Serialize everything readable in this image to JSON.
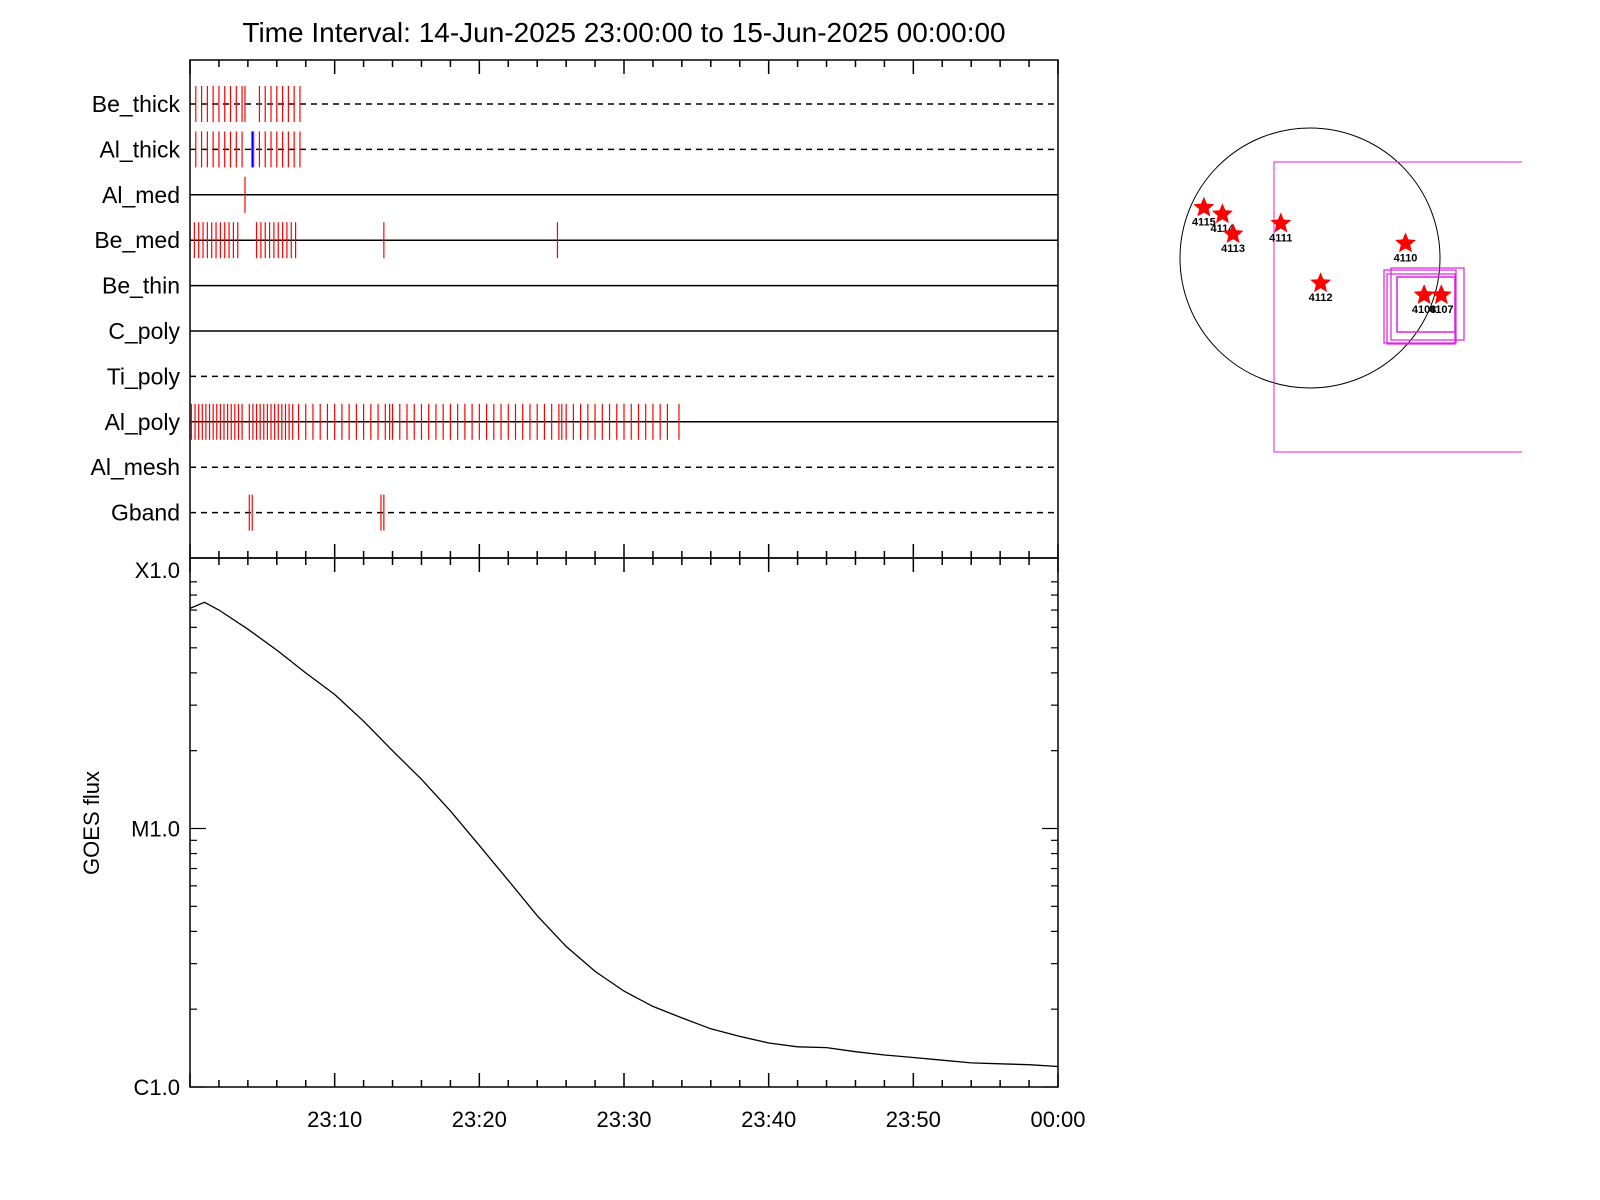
{
  "title": "Time Interval: 14-Jun-2025 23:00:00 to 15-Jun-2025 00:00:00",
  "colors": {
    "axis": "#000000",
    "event_red": "#ff0000",
    "event_blue": "#0000ff",
    "fov_magenta": "#e020e0",
    "star_red": "#ff0000"
  },
  "chart_data": [
    {
      "type": "event-raster",
      "x_unit": "minutes after 23:00",
      "xlim": [
        0,
        60
      ],
      "channels": [
        {
          "name": "Be_thick",
          "baseline": "dashed",
          "red": [
            0.4,
            0.8,
            1.2,
            1.6,
            2.0,
            2.4,
            2.8,
            3.2,
            3.6,
            3.8,
            4.8,
            5.2,
            5.6,
            6.0,
            6.4,
            6.8,
            7.2,
            7.6
          ],
          "blue": []
        },
        {
          "name": "Al_thick",
          "baseline": "dashed",
          "red": [
            0.4,
            0.8,
            1.2,
            1.6,
            2.0,
            2.4,
            2.8,
            3.2,
            3.6,
            4.4,
            4.8,
            5.2,
            5.6,
            6.0,
            6.4,
            6.8,
            7.2,
            7.6
          ],
          "blue": [
            4.3
          ]
        },
        {
          "name": "Al_med",
          "baseline": "solid",
          "red": [
            3.8
          ],
          "blue": []
        },
        {
          "name": "Be_med",
          "baseline": "solid",
          "red": [
            0.3,
            0.6,
            0.9,
            1.2,
            1.5,
            1.8,
            2.1,
            2.4,
            2.7,
            3.0,
            3.3,
            4.6,
            4.9,
            5.2,
            5.5,
            5.8,
            6.1,
            6.4,
            6.7,
            7.0,
            7.3,
            13.4,
            25.4
          ],
          "blue": []
        },
        {
          "name": "Be_thin",
          "baseline": "solid",
          "red": [],
          "blue": []
        },
        {
          "name": "C_poly",
          "baseline": "solid",
          "red": [],
          "blue": []
        },
        {
          "name": "Ti_poly",
          "baseline": "dashed",
          "red": [],
          "blue": []
        },
        {
          "name": "Al_poly",
          "baseline": "solid",
          "red": [
            0.1,
            0.35,
            0.6,
            0.85,
            1.1,
            1.35,
            1.6,
            1.85,
            2.1,
            2.35,
            2.6,
            2.85,
            3.1,
            3.35,
            3.6,
            4.1,
            4.35,
            4.6,
            4.85,
            5.1,
            5.35,
            5.6,
            5.85,
            6.1,
            6.35,
            6.6,
            6.85,
            7.1,
            7.5,
            8.0,
            8.5,
            9.0,
            9.5,
            10.0,
            10.5,
            11.0,
            11.5,
            12.0,
            12.5,
            13.0,
            13.5,
            13.8,
            14.0,
            14.5,
            15.0,
            15.5,
            16.0,
            16.5,
            17.0,
            17.5,
            18.0,
            18.5,
            19.0,
            19.5,
            20.0,
            20.5,
            21.0,
            21.5,
            22.0,
            22.5,
            23.0,
            23.5,
            24.0,
            24.5,
            25.0,
            25.5,
            25.7,
            26.0,
            26.5,
            27.0,
            27.5,
            28.0,
            28.5,
            29.0,
            29.5,
            30.0,
            30.5,
            31.0,
            31.5,
            32.0,
            32.5,
            33.0,
            33.8
          ],
          "blue": []
        },
        {
          "name": "Al_mesh",
          "baseline": "dashed",
          "red": [],
          "blue": []
        },
        {
          "name": "Gband",
          "baseline": "dashed",
          "red": [
            4.1,
            4.3,
            13.2,
            13.4
          ],
          "blue": []
        }
      ]
    },
    {
      "type": "line",
      "ylabel": "GOES flux",
      "yscale": "log",
      "ylim": [
        1e-06,
        0.0001
      ],
      "ytick_labels": [
        "C1.0",
        "M1.0",
        "X1.0"
      ],
      "ytick_values": [
        1e-06,
        1e-05,
        0.0001
      ],
      "xlim": [
        0,
        60
      ],
      "xtick_labels": [
        "23:10",
        "23:20",
        "23:30",
        "23:40",
        "23:50",
        "00:00"
      ],
      "xtick_minutes": [
        10,
        20,
        30,
        40,
        50,
        60
      ],
      "series": [
        {
          "x": [
            0,
            1,
            2,
            4,
            6,
            8,
            10,
            12,
            14,
            16,
            18,
            20,
            22,
            24,
            26,
            28,
            30,
            32,
            34,
            36,
            38,
            40,
            42,
            44,
            46,
            48,
            50,
            52,
            54,
            56,
            58,
            60
          ],
          "y": [
            7.1e-05,
            7.5e-05,
            7e-05,
            5.9e-05,
            4.9e-05,
            4e-05,
            3.3e-05,
            2.6e-05,
            2e-05,
            1.55e-05,
            1.17e-05,
            8.6e-06,
            6.3e-06,
            4.6e-06,
            3.5e-06,
            2.8e-06,
            2.35e-06,
            2.05e-06,
            1.85e-06,
            1.68e-06,
            1.57e-06,
            1.48e-06,
            1.43e-06,
            1.42e-06,
            1.37e-06,
            1.33e-06,
            1.3e-06,
            1.27e-06,
            1.24e-06,
            1.23e-06,
            1.22e-06,
            1.2e-06
          ]
        }
      ]
    }
  ],
  "solar_map": {
    "active_regions": [
      {
        "label": "4115",
        "x": -800,
        "y": 380
      },
      {
        "label": "4114",
        "x": -660,
        "y": 330
      },
      {
        "label": "4113",
        "x": -580,
        "y": 180
      },
      {
        "label": "4111",
        "x": -220,
        "y": 260
      },
      {
        "label": "4110",
        "x": 720,
        "y": 110
      },
      {
        "label": "4112",
        "x": 80,
        "y": -190
      },
      {
        "label": "4108",
        "x": 860,
        "y": -280
      },
      {
        "label": "4107",
        "x": 990,
        "y": -280
      }
    ]
  }
}
